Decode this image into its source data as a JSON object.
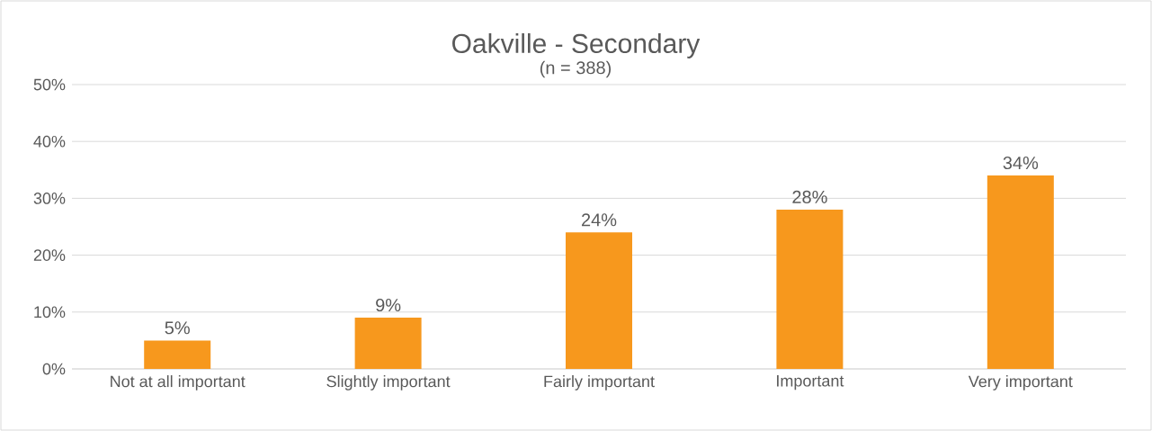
{
  "chart_data": {
    "type": "bar",
    "title": "Oakville - Secondary",
    "subtitle": "(n = 388)",
    "categories": [
      "Not at all important",
      "Slightly important",
      "Fairly important",
      "Important",
      "Very important"
    ],
    "values": [
      5,
      9,
      24,
      28,
      34
    ],
    "value_labels": [
      "5%",
      "9%",
      "24%",
      "28%",
      "34%"
    ],
    "color": "#f7981d",
    "ylim": [
      0,
      50
    ],
    "yticks": [
      {
        "value": 0,
        "label": "0%"
      },
      {
        "value": 10,
        "label": "10%"
      },
      {
        "value": 20,
        "label": "20%"
      },
      {
        "value": 30,
        "label": "30%"
      },
      {
        "value": 40,
        "label": "40%"
      },
      {
        "value": 50,
        "label": "50%"
      }
    ],
    "grid": "y"
  }
}
